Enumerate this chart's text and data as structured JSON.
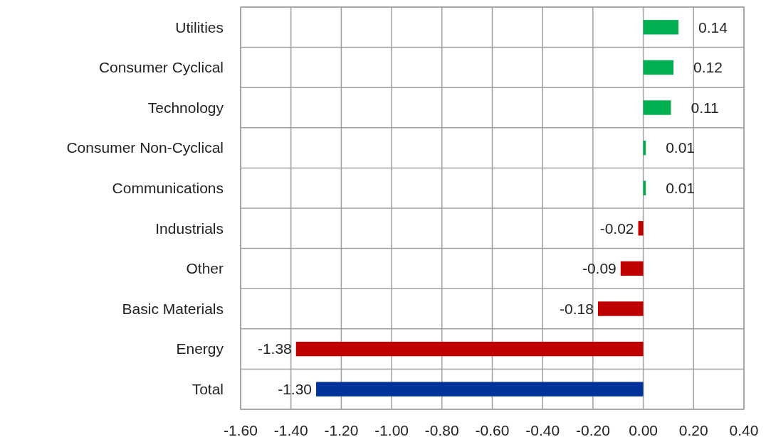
{
  "chart_data": {
    "type": "bar",
    "orientation": "horizontal",
    "categories": [
      "Utilities",
      "Consumer Cyclical",
      "Technology",
      "Consumer Non-Cyclical",
      "Communications",
      "Industrials",
      "Other",
      "Basic Materials",
      "Energy",
      "Total"
    ],
    "values": [
      0.14,
      0.12,
      0.11,
      0.01,
      0.01,
      -0.02,
      -0.09,
      -0.18,
      -1.38,
      -1.3
    ],
    "colors": [
      "#00b050",
      "#00b050",
      "#00b050",
      "#00b050",
      "#00b050",
      "#c00000",
      "#c00000",
      "#c00000",
      "#c00000",
      "#003399"
    ],
    "value_labels": [
      "0.14",
      "0.12",
      "0.11",
      "0.01",
      "0.01",
      "-0.02",
      "-0.09",
      "-0.18",
      "-1.38",
      "-1.30"
    ],
    "xlim": [
      -1.6,
      0.4
    ],
    "xticks": [
      {
        "value": -1.6,
        "label": "-1.60"
      },
      {
        "value": -1.4,
        "label": "-1.40"
      },
      {
        "value": -1.2,
        "label": "-1.20"
      },
      {
        "value": -1,
        "label": "-1.00"
      },
      {
        "value": -0.8,
        "label": "-0.80"
      },
      {
        "value": -0.6,
        "label": "-0.60"
      },
      {
        "value": -0.4,
        "label": "-0.40"
      },
      {
        "value": -0.2,
        "label": "-0.20"
      },
      {
        "value": 0,
        "label": "0.00"
      },
      {
        "value": 0.2,
        "label": "0.20"
      },
      {
        "value": 0.4,
        "label": "0.40"
      }
    ],
    "grid": true
  }
}
